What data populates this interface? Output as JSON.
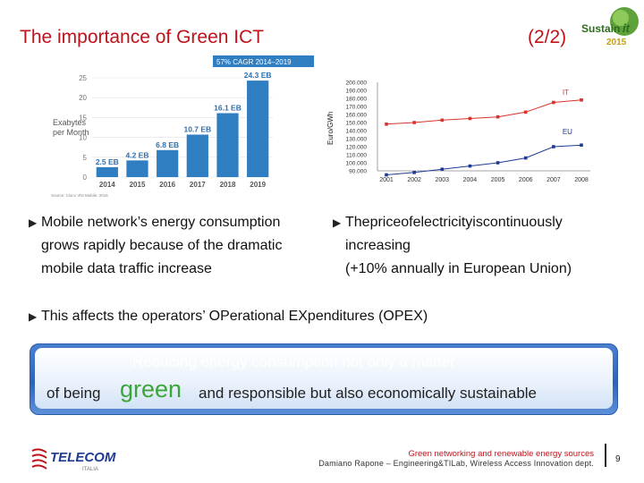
{
  "header": {
    "title": "The importance of Green ICT",
    "page_of": "(2/2)",
    "logo_text": "Sustain",
    "logo_accent": "it",
    "logo_year": "2015"
  },
  "chart_data": [
    {
      "type": "bar",
      "title": "57% CAGR 2014–2019",
      "ylabel": "Exabytes per Month",
      "ylabel_line1": "Exabytes",
      "ylabel_line2": "per Month",
      "categories": [
        "2014",
        "2015",
        "2016",
        "2017",
        "2018",
        "2019"
      ],
      "values": [
        2.5,
        4.2,
        6.8,
        10.7,
        16.1,
        24.3
      ],
      "value_labels": [
        "2.5 EB",
        "4.2 EB",
        "6.8 EB",
        "10.7 EB",
        "16.1 EB",
        "24.3 EB"
      ],
      "ylim": [
        0,
        25
      ],
      "yticks": [
        "0",
        "5",
        "10",
        "15",
        "20",
        "25"
      ],
      "source": "Source: Cisco VNI Mobile, 2015",
      "bar_color": "#2f7ec2"
    },
    {
      "type": "line",
      "ylabel": "Euro/GWh",
      "x": [
        "2001",
        "2002",
        "2003",
        "2004",
        "2005",
        "2006",
        "2007",
        "2008"
      ],
      "ylim": [
        90000,
        200000
      ],
      "yticks": [
        "90.000",
        "100.000",
        "110.000",
        "120.000",
        "130.000",
        "140.000",
        "150.000",
        "160.000",
        "170.000",
        "180.000",
        "190.000",
        "200.000"
      ],
      "series": [
        {
          "name": "IT",
          "color": "#d9322b",
          "values": [
            148000,
            150000,
            153000,
            155000,
            157000,
            163000,
            175000,
            178000
          ]
        },
        {
          "name": "EU",
          "color": "#1f3a93",
          "values": [
            85000,
            88000,
            92000,
            96000,
            100000,
            106000,
            120000,
            122000
          ]
        }
      ]
    }
  ],
  "bullets": {
    "left": [
      "Mobile network’s energy consumption",
      "grows rapidly because of the dramatic",
      "mobile data traffic increase"
    ],
    "right": [
      "Thepriceofelectricityiscontinuously",
      "increasing",
      "(+10% annually in European Union)"
    ],
    "bottom": "This affects the operators’ OPerational EXpenditures (OPEX)"
  },
  "callout": {
    "line1": "Reducing energy consumption not only a matter",
    "prefix": "of being",
    "green_word": "green",
    "suffix": "and responsible but also economically sustainable",
    "green_color": "#3aa63a"
  },
  "footer": {
    "brand": "TELECOM",
    "brand_sub": "ITALIA",
    "line1": "Green networking and renewable energy sources",
    "line2": "Damiano Rapone – Engineering&TILab, Wireless Access Innovation dept.",
    "page_number": "9"
  }
}
